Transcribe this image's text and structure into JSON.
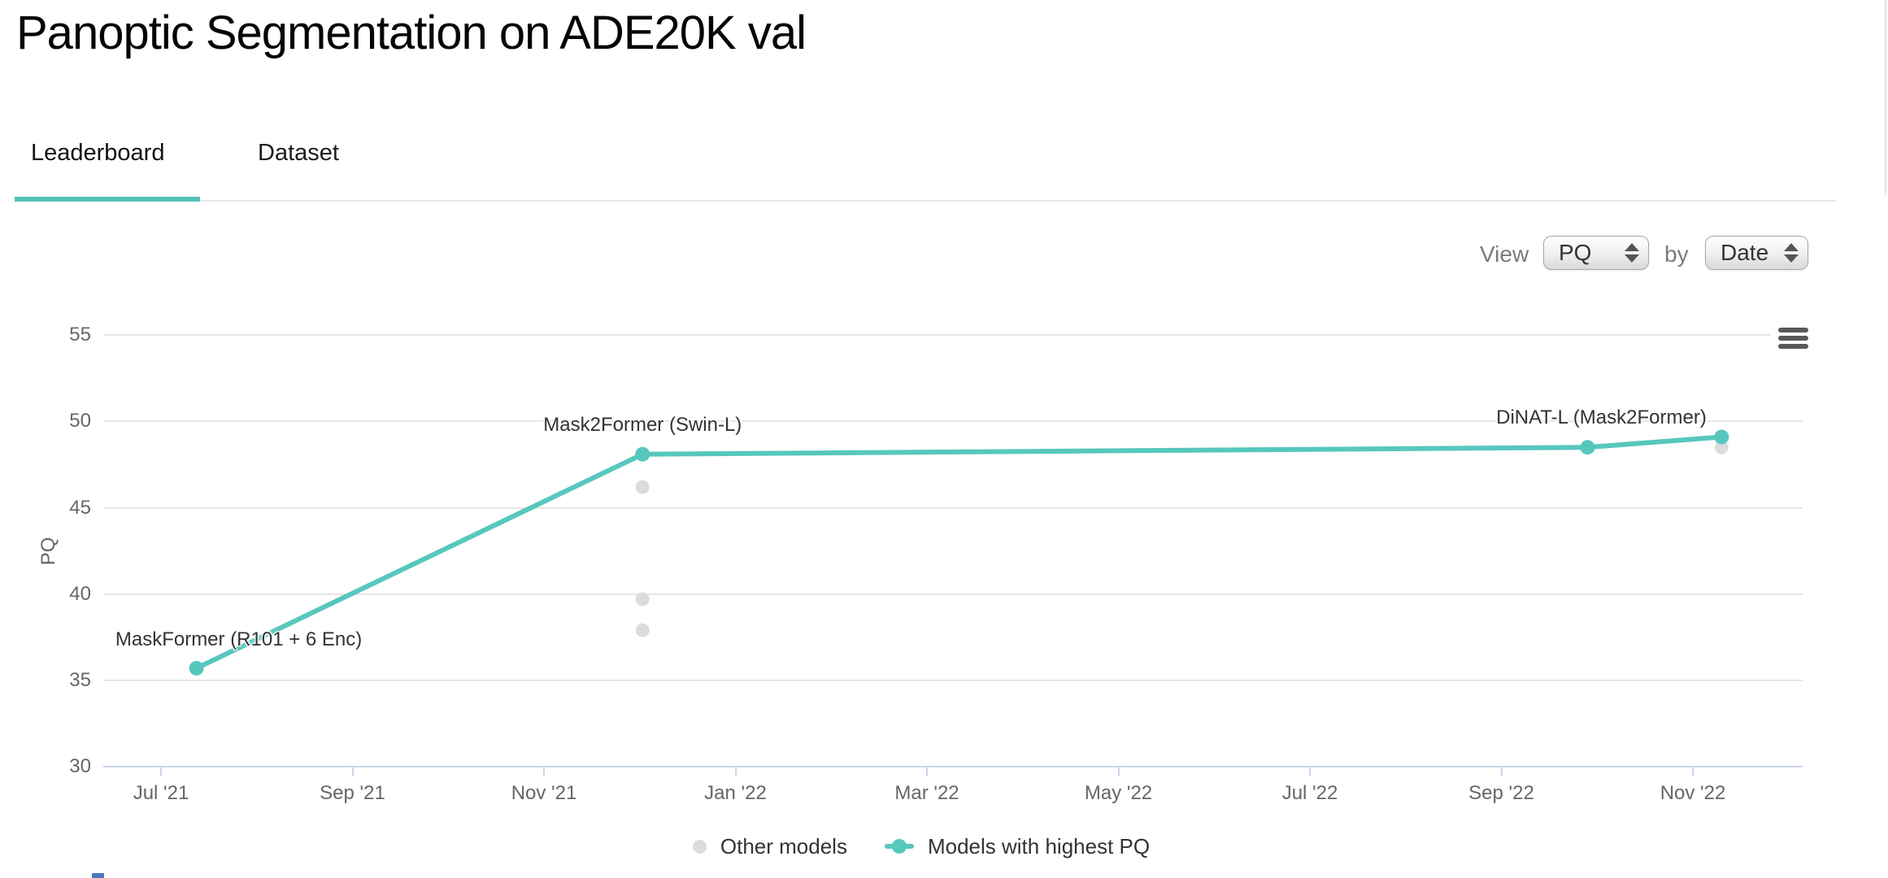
{
  "page": {
    "title": "Panoptic Segmentation on ADE20K val"
  },
  "tabs": [
    {
      "label": "Leaderboard",
      "active": true
    },
    {
      "label": "Dataset",
      "active": false
    }
  ],
  "controls": {
    "view_label": "View",
    "metric_selected": "PQ",
    "by_label": "by",
    "sort_selected": "Date"
  },
  "icons": {
    "context_menu": "hamburger-menu-icon",
    "select_stepper": "up-down-stepper-icon"
  },
  "chart_data": {
    "type": "line",
    "title": "",
    "xlabel": "",
    "ylabel": "PQ",
    "x_unit": "months since Jul 2021",
    "ylim": [
      30,
      57.5
    ],
    "grid": "horizontal",
    "legend_position": "bottom-center",
    "y_ticks": [
      30,
      35,
      40,
      45,
      50,
      55
    ],
    "x_ticks": [
      {
        "label": "Jul '21",
        "m": 0
      },
      {
        "label": "Sep '21",
        "m": 2
      },
      {
        "label": "Nov '21",
        "m": 4
      },
      {
        "label": "Jan '22",
        "m": 6
      },
      {
        "label": "Mar '22",
        "m": 8
      },
      {
        "label": "May '22",
        "m": 10
      },
      {
        "label": "Jul '22",
        "m": 12
      },
      {
        "label": "Sep '22",
        "m": 14
      },
      {
        "label": "Nov '22",
        "m": 16
      }
    ],
    "series": [
      {
        "name": "Other models",
        "color": "#dcdcdc",
        "marker": "dot",
        "points": [
          {
            "date": "Dec 2021",
            "m": 5.03,
            "pq": 46.2
          },
          {
            "date": "Dec 2021",
            "m": 5.03,
            "pq": 39.7
          },
          {
            "date": "Dec 2021",
            "m": 5.03,
            "pq": 37.9
          },
          {
            "date": "Nov 2022",
            "m": 16.3,
            "pq": 48.5
          }
        ]
      },
      {
        "name": "Models with highest PQ",
        "color": "#57c7bd",
        "marker": "line-dot",
        "points": [
          {
            "date": "Jul 2021",
            "m": 0.37,
            "pq": 35.7,
            "label": "MaskFormer (R101 + 6 Enc)"
          },
          {
            "date": "Dec 2021",
            "m": 5.03,
            "pq": 48.1,
            "label": "Mask2Former (Swin-L)"
          },
          {
            "date": "Sep 2022",
            "m": 14.9,
            "pq": 48.5,
            "label": "DiNAT-L (Mask2Former)"
          },
          {
            "date": "Nov 2022",
            "m": 16.3,
            "pq": 49.1
          }
        ]
      }
    ],
    "legend": [
      {
        "name": "Other models",
        "marker": "dot"
      },
      {
        "name": "Models with highest PQ",
        "marker": "line-dot"
      }
    ]
  }
}
